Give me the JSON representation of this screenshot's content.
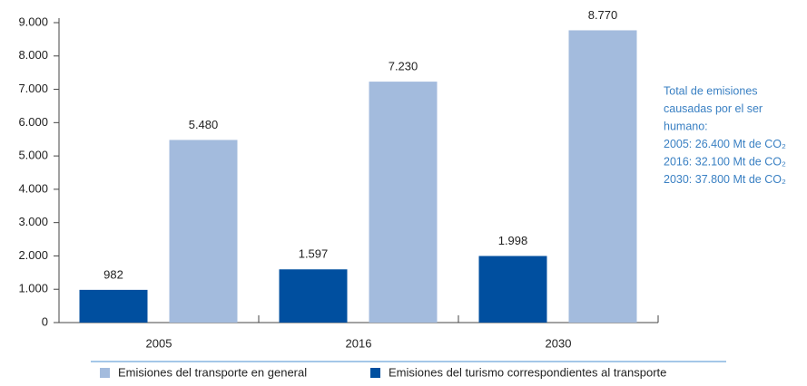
{
  "chart_data": {
    "type": "bar",
    "categories": [
      "2005",
      "2016",
      "2030"
    ],
    "series": [
      {
        "name": "Emisiones del transporte en general",
        "color": "#a3bbdd",
        "values": [
          5480,
          7230,
          8770
        ],
        "value_labels": [
          "5.480",
          "7.230",
          "8.770"
        ]
      },
      {
        "name": "Emisiones del turismo correspondientes al transporte",
        "color": "#004f9f",
        "values": [
          982,
          1597,
          1998
        ],
        "value_labels": [
          "982",
          "1.597",
          "1.998"
        ]
      }
    ],
    "ylim": [
      0,
      9000
    ],
    "yticks": [
      0,
      {
        "value": 1000,
        "label": "1.000"
      },
      {
        "value": 2000,
        "label": "2.000"
      },
      {
        "value": 3000,
        "label": "3.000"
      },
      {
        "value": 4000,
        "label": "4.000"
      },
      {
        "value": 5000,
        "label": "5.000"
      },
      {
        "value": 6000,
        "label": "6.000"
      },
      {
        "value": 7000,
        "label": "7.000"
      },
      {
        "value": 8000,
        "label": "8.000"
      },
      {
        "value": 9000,
        "label": "9.000"
      }
    ],
    "grid": false,
    "legend": "bottom",
    "annotation": [
      "Total de emisiones",
      "causadas por el ser",
      "humano:",
      "2005: 26.400 Mt de CO₂",
      "2016: 32.100 Mt de CO₂",
      "2030: 37.800 Mt de CO₂"
    ]
  }
}
